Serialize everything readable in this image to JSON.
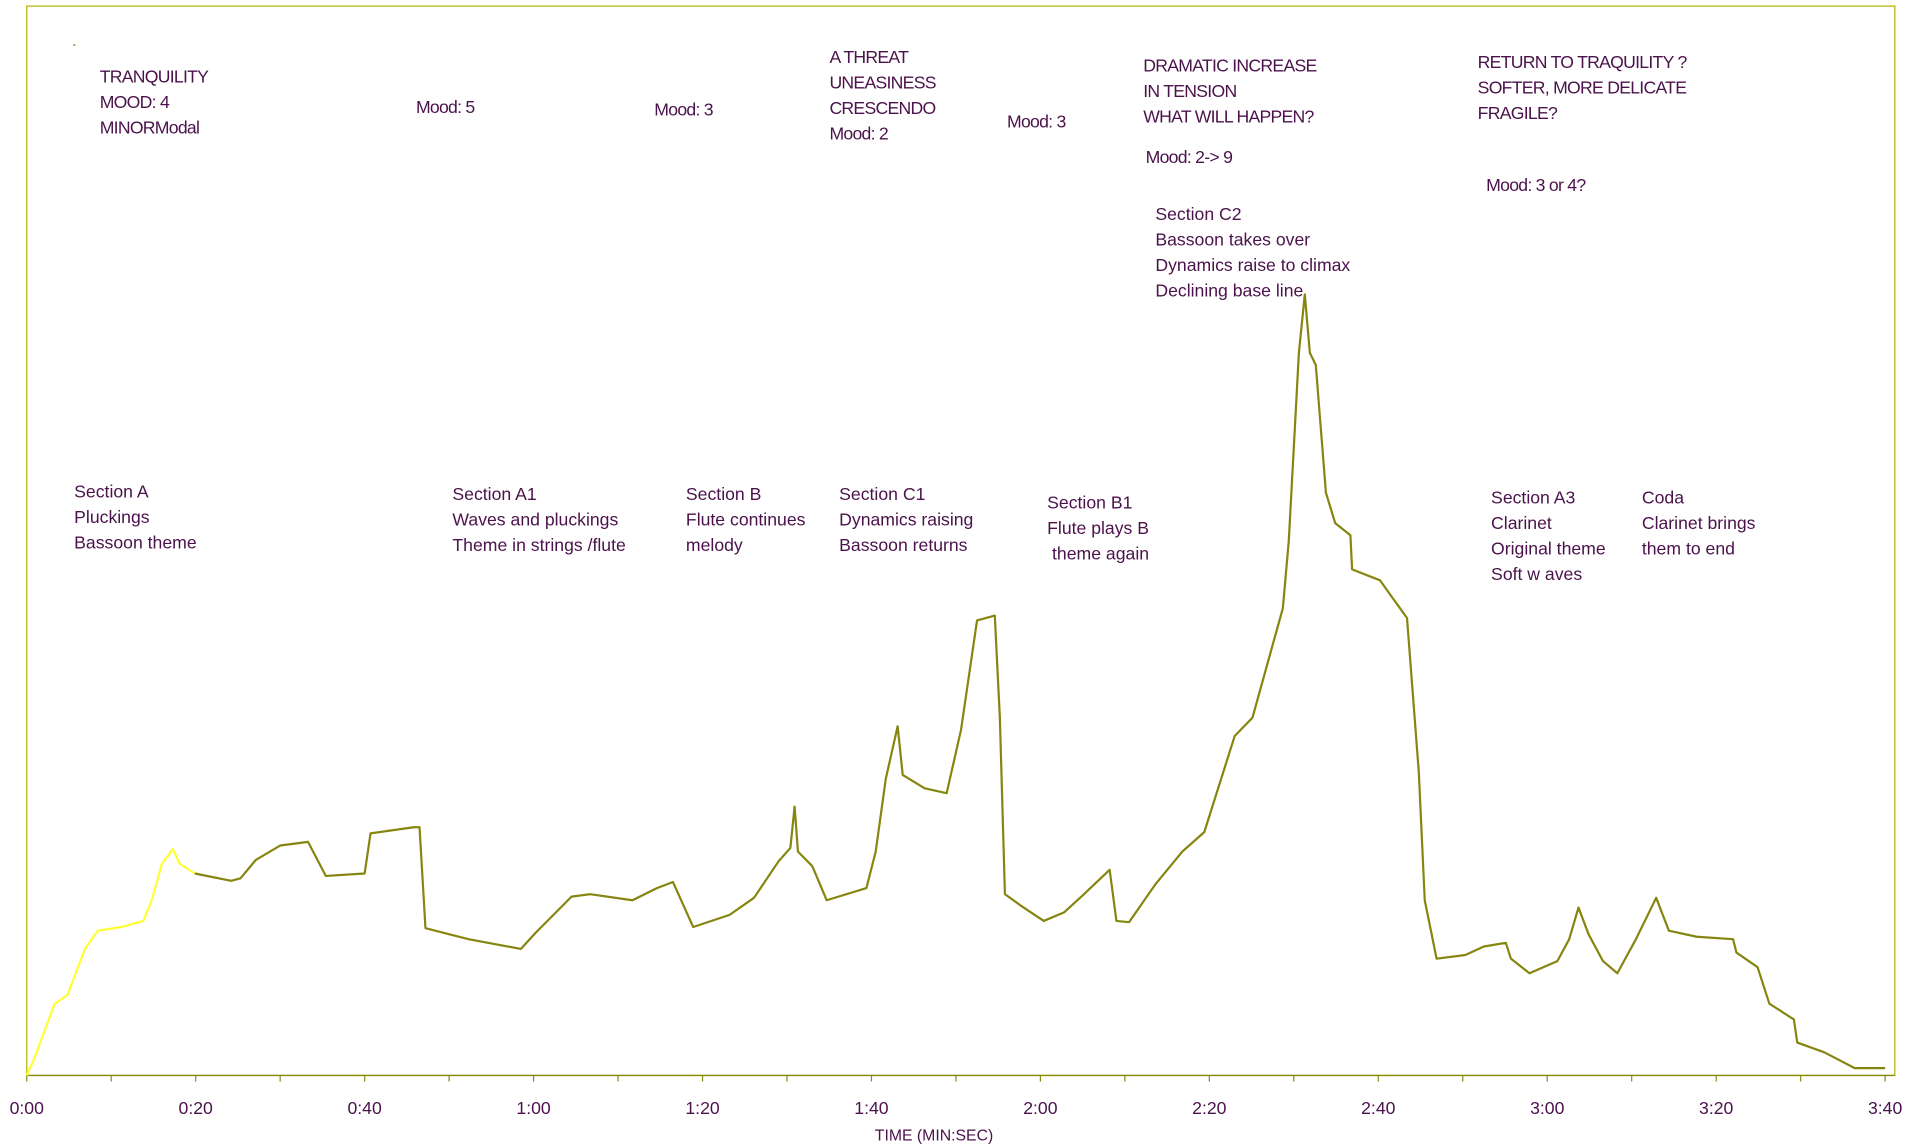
{
  "chart_data": {
    "type": "line",
    "x_label": "TIME (MIN:SEC)",
    "xlim": [
      0,
      220
    ],
    "ylim": [
      0,
      879
    ],
    "xticks": [
      {
        "value": 0,
        "label": "0:00"
      },
      {
        "value": 10,
        "label": null
      },
      {
        "value": 20,
        "label": "0:20"
      },
      {
        "value": 30,
        "label": null
      },
      {
        "value": 40,
        "label": "0:40"
      },
      {
        "value": 50,
        "label": null
      },
      {
        "value": 60,
        "label": "1:00"
      },
      {
        "value": 70,
        "label": null
      },
      {
        "value": 80,
        "label": "1:20"
      },
      {
        "value": 90,
        "label": null
      },
      {
        "value": 100,
        "label": "1:40"
      },
      {
        "value": 110,
        "label": null
      },
      {
        "value": 120,
        "label": "2:00"
      },
      {
        "value": 130,
        "label": null
      },
      {
        "value": 140,
        "label": "2:20"
      },
      {
        "value": 150,
        "label": null
      },
      {
        "value": 160,
        "label": "2:40"
      },
      {
        "value": 170,
        "label": null
      },
      {
        "value": 180,
        "label": "3:00"
      },
      {
        "value": 190,
        "label": null
      },
      {
        "value": 200,
        "label": "3:20"
      },
      {
        "value": 210,
        "label": null
      },
      {
        "value": 220,
        "label": "3:40"
      }
    ],
    "series": [
      {
        "color": "#ffff33",
        "x": [
          0,
          0.9,
          3.3,
          4.8,
          6.9,
          8.4,
          11.2,
          13.8,
          14.8,
          16,
          17.3,
          18.1,
          19.9
        ],
        "values": [
          0,
          14,
          59,
          66,
          104,
          119,
          122,
          127,
          144,
          174,
          186,
          174,
          166
        ]
      },
      {
        "color": "#85850f",
        "x": [
          19.9,
          24.2,
          25.3,
          27.1,
          30,
          33.3,
          35.4,
          40,
          40.7,
          45.8,
          46.5,
          47.2,
          52.3,
          58.5,
          60.2,
          64.5,
          66.7,
          71.7,
          74.6,
          76.5,
          78.9,
          83.2,
          86.1,
          89,
          90.4,
          90.9,
          91.3,
          93,
          94.7,
          99.4,
          100.5,
          101.7,
          103.1,
          103.7,
          106.3,
          108.9,
          110.6,
          112.5,
          114.6,
          115.2,
          115.8,
          117.8,
          120.4,
          122.8,
          125,
          128.2,
          129,
          130.5,
          133.6,
          136.8,
          139.4,
          143,
          145.1,
          147.7,
          148.7,
          149.4,
          150.6,
          151.3,
          151.9,
          152.6,
          153.8,
          154.9,
          156.7,
          156.9,
          160.2,
          163.4,
          164.8,
          165.5,
          166.9,
          170.3,
          172.5,
          175.1,
          175.7,
          177.9,
          181.2,
          182.6,
          183.7,
          184.9,
          186.6,
          188.3,
          190.5,
          192.9,
          194.4,
          197.7,
          202,
          202.4,
          204.9,
          206.3,
          209.2,
          209.6,
          212.8,
          216.4,
          220
        ],
        "values": [
          166,
          160,
          162,
          177,
          189,
          192,
          164,
          166,
          199,
          204,
          204,
          121,
          112,
          104,
          117,
          147,
          149,
          144,
          154,
          159,
          122,
          132,
          146,
          176,
          187,
          221,
          184,
          172,
          144,
          154,
          184,
          244,
          287,
          247,
          236,
          232,
          284,
          374,
          378,
          294,
          149,
          139,
          127,
          134,
          148,
          169,
          127,
          126,
          157,
          184,
          200,
          279,
          294,
          359,
          384,
          439,
          594,
          642,
          594,
          584,
          479,
          454,
          444,
          416,
          407,
          376,
          249,
          144,
          96,
          99,
          106,
          109,
          96,
          84,
          94,
          112,
          138,
          116,
          94,
          84,
          112,
          146,
          119,
          114,
          112,
          101,
          89,
          59,
          46,
          27,
          19,
          6,
          6
        ]
      }
    ],
    "annotations": [
      [
        "TRANQUILITY",
        "MOOD: 4",
        "MINORModal"
      ],
      [
        "Mood: 5"
      ],
      [
        "Mood: 3"
      ],
      [
        "A THREAT",
        "UNEASINESS",
        "CRESCENDO",
        "Mood: 2"
      ],
      [
        "Mood: 3"
      ],
      [
        "DRAMATIC INCREASE",
        "IN TENSION",
        "WHAT WILL HAPPEN?"
      ],
      [
        "Mood: 2-> 9"
      ],
      [
        "RETURN TO TRAQUILITY ?",
        "SOFTER, MORE DELICATE",
        "FRAGILE?"
      ],
      [
        "Mood: 3 or 4?"
      ],
      [
        "Section C2",
        "Bassoon takes over",
        "Dynamics raise to climax",
        "Declining base line"
      ],
      [
        "Section A",
        "Pluckings",
        "Bassoon theme"
      ],
      [
        "Section A1",
        "Waves and pluckings",
        "Theme in strings /flute"
      ],
      [
        "Section B",
        "Flute continues",
        "melody"
      ],
      [
        "Section C1",
        "Dynamics raising",
        "Bassoon returns"
      ],
      [
        "Section B1",
        "Flute plays B",
        " theme again"
      ],
      [
        "Section A3",
        "Clarinet",
        "Original theme",
        "Soft w aves"
      ],
      [
        "Coda",
        "Clarinet brings",
        "them to end"
      ]
    ]
  }
}
